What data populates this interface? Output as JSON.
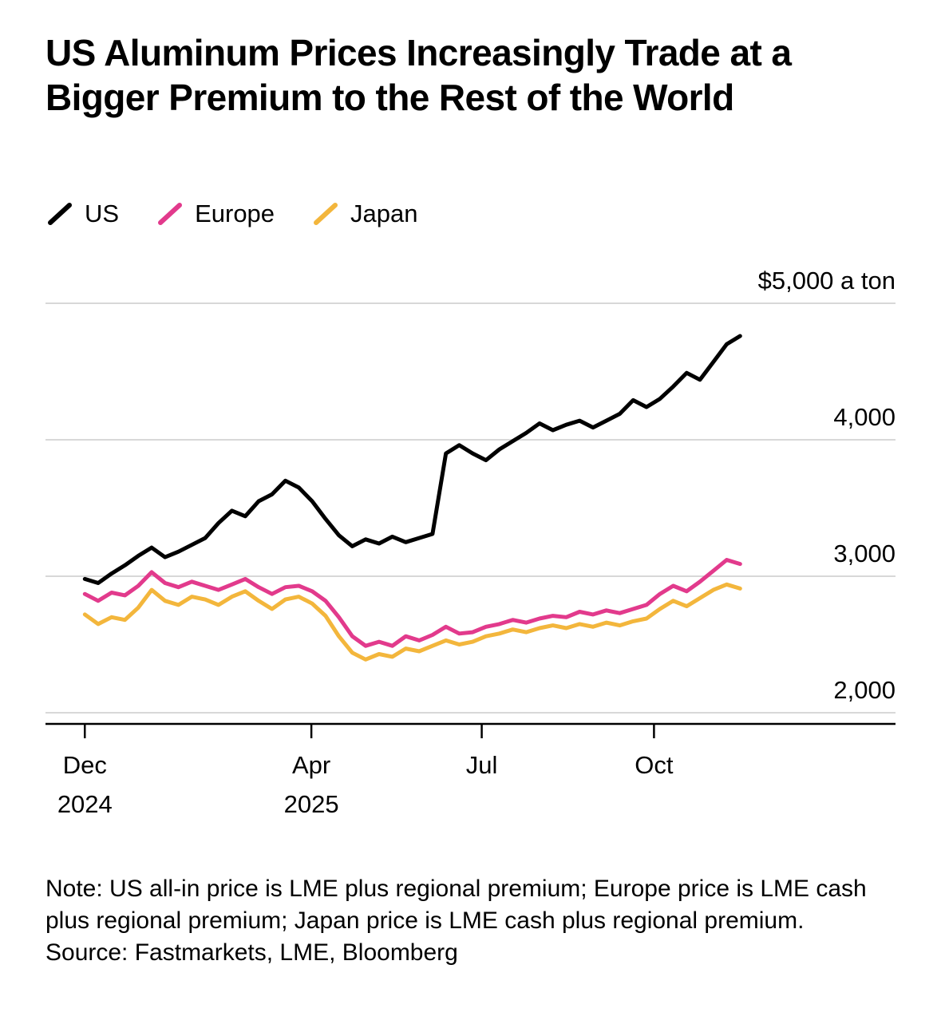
{
  "title": "US Aluminum Prices Increasingly Trade at a Bigger Premium to the Rest of the World",
  "note": "Note: US all-in price is LME plus regional premium; Europe price is LME cash plus regional premium; Japan price is LME cash plus regional premium.",
  "source": "Source: Fastmarkets, LME, Bloomberg",
  "colors": {
    "us": "#000000",
    "europe": "#e23a8c",
    "japan": "#f3b63c",
    "gridline": "#d8d8d8",
    "axis": "#000000"
  },
  "chart_data": {
    "type": "line",
    "title": "US Aluminum Prices Increasingly Trade at a Bigger Premium to the Rest of the World",
    "unit": "$ a ton",
    "legend_position": "top-left",
    "grid": "horizontal",
    "x_axis": {
      "span_days": 350,
      "point_spacing": "even",
      "ticks": [
        {
          "day": 0,
          "label": "Dec",
          "sublabel": "2024"
        },
        {
          "day": 121,
          "label": "Apr",
          "sublabel": "2025"
        },
        {
          "day": 212,
          "label": "Jul"
        },
        {
          "day": 304,
          "label": "Oct"
        }
      ]
    },
    "y_axis": {
      "min": 2000,
      "max": 5000,
      "gridlines": [
        {
          "value": 5000,
          "label": "$5,000 a ton"
        },
        {
          "value": 4000,
          "label": "4,000"
        },
        {
          "value": 3000,
          "label": "3,000"
        },
        {
          "value": 2000,
          "label": "2,000"
        }
      ]
    },
    "series": [
      {
        "name": "US",
        "color": "#000000",
        "values": [
          2980,
          2950,
          3020,
          3080,
          3150,
          3210,
          3140,
          3180,
          3230,
          3280,
          3390,
          3480,
          3440,
          3550,
          3600,
          3700,
          3650,
          3550,
          3420,
          3300,
          3220,
          3270,
          3240,
          3290,
          3250,
          3280,
          3310,
          3900,
          3960,
          3900,
          3850,
          3930,
          3990,
          4050,
          4120,
          4070,
          4110,
          4140,
          4090,
          4140,
          4190,
          4290,
          4240,
          4300,
          4390,
          4490,
          4440,
          4570,
          4700,
          4760
        ]
      },
      {
        "name": "Europe",
        "color": "#e23a8c",
        "values": [
          2870,
          2820,
          2880,
          2860,
          2930,
          3030,
          2950,
          2920,
          2960,
          2930,
          2900,
          2940,
          2980,
          2920,
          2870,
          2920,
          2930,
          2890,
          2820,
          2700,
          2560,
          2490,
          2520,
          2490,
          2560,
          2530,
          2570,
          2630,
          2580,
          2590,
          2630,
          2650,
          2680,
          2660,
          2690,
          2710,
          2700,
          2740,
          2720,
          2750,
          2730,
          2760,
          2790,
          2870,
          2930,
          2890,
          2960,
          3040,
          3120,
          3090
        ]
      },
      {
        "name": "Japan",
        "color": "#f3b63c",
        "values": [
          2720,
          2650,
          2700,
          2680,
          2770,
          2900,
          2820,
          2790,
          2850,
          2830,
          2790,
          2850,
          2890,
          2820,
          2760,
          2830,
          2850,
          2800,
          2710,
          2560,
          2440,
          2390,
          2430,
          2410,
          2470,
          2450,
          2490,
          2530,
          2500,
          2520,
          2560,
          2580,
          2610,
          2590,
          2620,
          2640,
          2620,
          2650,
          2630,
          2660,
          2640,
          2670,
          2690,
          2760,
          2820,
          2780,
          2840,
          2900,
          2940,
          2910
        ]
      }
    ]
  }
}
